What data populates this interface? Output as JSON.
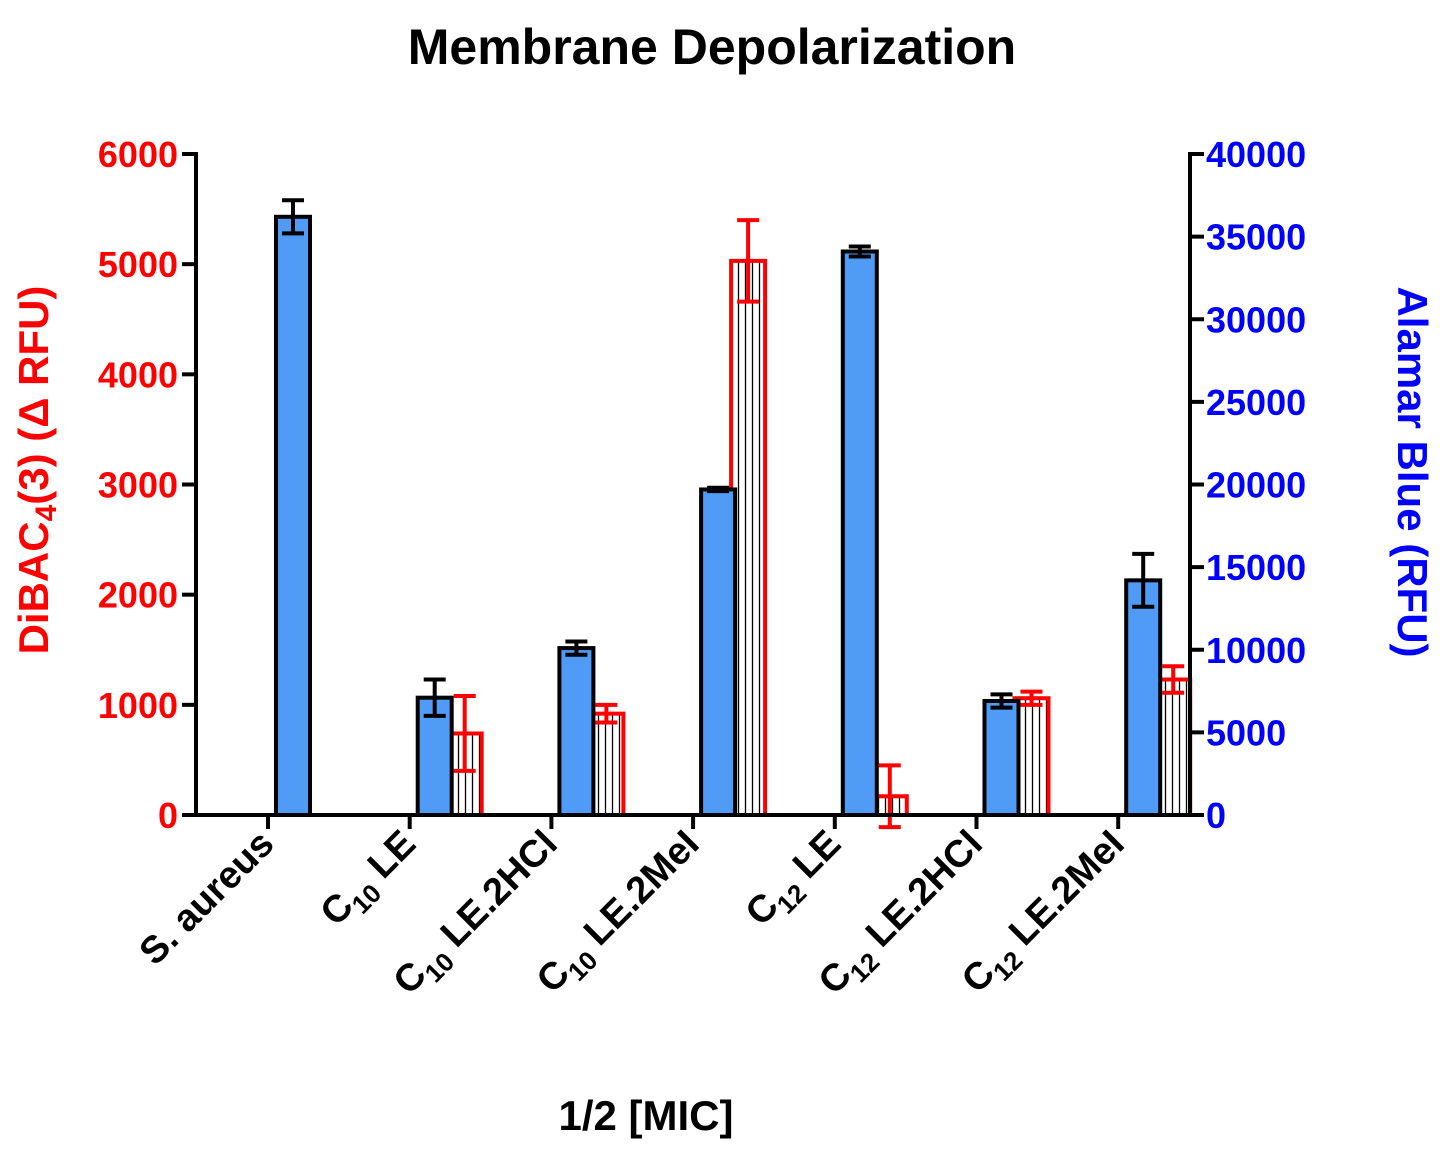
{
  "chart_data": {
    "type": "bar",
    "title": "Membrane Depolarization",
    "xlabel": "1/2 [MIC]",
    "categories": [
      {
        "main": "S. aureus",
        "sub": "",
        "rest": ""
      },
      {
        "main": "C",
        "sub": "10",
        "rest": " LE"
      },
      {
        "main": "C",
        "sub": "10",
        "rest": " LE.2HCl"
      },
      {
        "main": "C",
        "sub": "10",
        "rest": " LE.2MeI"
      },
      {
        "main": "C",
        "sub": "12",
        "rest": " LE"
      },
      {
        "main": "C",
        "sub": "12",
        "rest": " LE.2HCl"
      },
      {
        "main": "C",
        "sub": "12",
        "rest": " LE.2MeI"
      }
    ],
    "left_axis": {
      "label_main": "DiBAC",
      "label_sub": "4",
      "label_rest": "(3) (Δ RFU)",
      "ylim": [
        0,
        6000
      ],
      "ticks": [
        "0",
        "1000",
        "2000",
        "3000",
        "4000",
        "5000",
        "6000"
      ],
      "color": "#ff0000"
    },
    "right_axis": {
      "label": "Alamar Blue (RFU)",
      "ylim": [
        0,
        40000
      ],
      "ticks": [
        "0",
        "5000",
        "10000",
        "15000",
        "20000",
        "25000",
        "30000",
        "35000",
        "40000"
      ],
      "color": "#0000ff"
    },
    "series": [
      {
        "name": "DiBAC4(3)",
        "axis": "left",
        "style": "hatched-outline",
        "color": "#ff0000",
        "values": [
          null,
          740,
          920,
          5030,
          170,
          1060,
          1230
        ],
        "errors": [
          null,
          340,
          80,
          370,
          280,
          60,
          120
        ]
      },
      {
        "name": "Alamar Blue",
        "axis": "right",
        "style": "filled",
        "color": "#4f9bf5",
        "values": [
          36200,
          7100,
          10100,
          19700,
          34100,
          6900,
          14200
        ],
        "errors": [
          1000,
          1100,
          400,
          100,
          300,
          400,
          1600
        ]
      }
    ]
  }
}
